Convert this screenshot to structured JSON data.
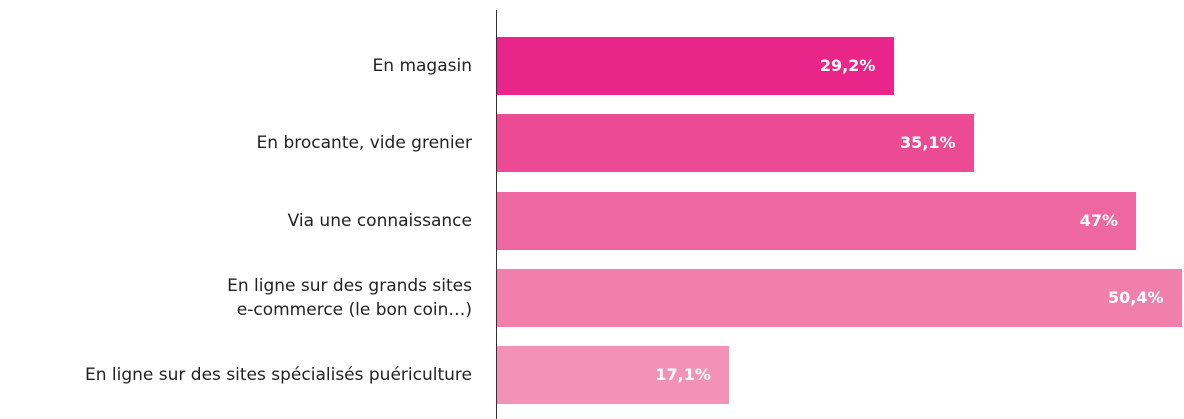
{
  "chart_data": {
    "type": "hbar",
    "categories": [
      "En magasin",
      "En brocante, vide grenier",
      "Via une connaissance",
      "En ligne sur des grands sites\ne-commerce (le bon coin…)",
      "En ligne sur des sites spécialisés puériculture"
    ],
    "values": [
      29.2,
      35.1,
      47,
      50.4,
      17.1
    ],
    "value_labels": [
      "29,2%",
      "35,1%",
      "47%",
      "50,4%",
      "17,1%"
    ],
    "colors": [
      "#e9258a",
      "#ec4b94",
      "#ef67a0",
      "#f17fac",
      "#f292b7"
    ]
  }
}
